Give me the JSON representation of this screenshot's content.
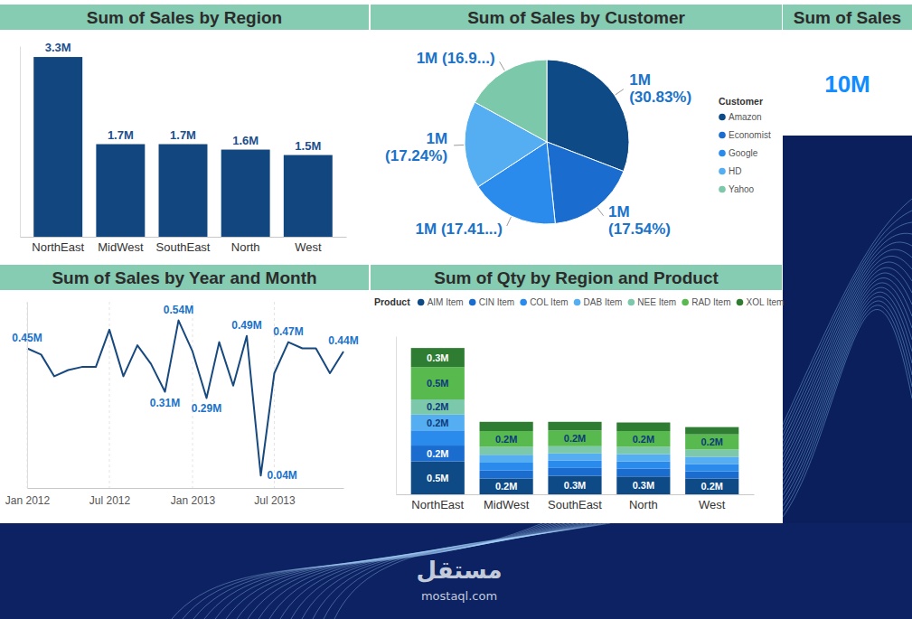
{
  "chart_data": [
    {
      "type": "bar",
      "title": "Sum of Sales by Region",
      "categories": [
        "NorthEast",
        "MidWest",
        "SouthEast",
        "North",
        "West"
      ],
      "values": [
        3.3,
        1.7,
        1.7,
        1.6,
        1.5
      ],
      "value_labels": [
        "3.3M",
        "1.7M",
        "1.7M",
        "1.6M",
        "1.5M"
      ],
      "color": "#12467f",
      "ylim": [
        0,
        3.5
      ],
      "data_labels": true,
      "tick_labels": "x"
    },
    {
      "type": "pie",
      "title": "Sum of Sales by Customer",
      "legend_title": "Customer",
      "categories": [
        "Amazon",
        "Economist",
        "Google",
        "HD",
        "Yahoo"
      ],
      "values": [
        30.83,
        17.54,
        17.41,
        17.24,
        16.98
      ],
      "value_labels": [
        "1M (30.83%)",
        "1M (17.54%)",
        "1M (17.41...)",
        "1M (17.24%)",
        "1M (16.9...)"
      ],
      "colors": [
        "#0e4a86",
        "#1a6ccf",
        "#2a8bec",
        "#55adf2",
        "#7cc8ab"
      ],
      "legend": "right",
      "data_labels": true
    },
    {
      "type": "card",
      "title": "Sum of Sales",
      "values": [
        10
      ],
      "value_labels": [
        "10M"
      ]
    },
    {
      "type": "line",
      "title": "Sum of Sales by Year and Month",
      "x": [
        "2012-01",
        "2012-02",
        "2012-03",
        "2012-04",
        "2012-05",
        "2012-06",
        "2012-07",
        "2012-08",
        "2012-09",
        "2012-10",
        "2012-11",
        "2012-12",
        "2013-01",
        "2013-02",
        "2013-03",
        "2013-04",
        "2013-05",
        "2013-06",
        "2013-07",
        "2013-08",
        "2013-09",
        "2013-10",
        "2013-11",
        "2013-12"
      ],
      "values": [
        0.45,
        0.43,
        0.36,
        0.38,
        0.39,
        0.39,
        0.51,
        0.36,
        0.46,
        0.4,
        0.31,
        0.54,
        0.44,
        0.29,
        0.47,
        0.33,
        0.49,
        0.04,
        0.37,
        0.47,
        0.45,
        0.45,
        0.37,
        0.44
      ],
      "value_labels": [
        "0.45M",
        null,
        null,
        null,
        null,
        null,
        null,
        null,
        null,
        null,
        "0.31M",
        "0.54M",
        null,
        "0.29M",
        null,
        null,
        "0.49M",
        "0.04M",
        null,
        "0.47M",
        null,
        null,
        null,
        "0.44M"
      ],
      "color": "#17497f",
      "xlim": [
        "2012-01",
        "2013-12"
      ],
      "xticks": [
        {
          "value": "2012-01",
          "label": "Jan 2012"
        },
        {
          "value": "2012-07",
          "label": "Jul 2012"
        },
        {
          "value": "2013-01",
          "label": "Jan 2013"
        },
        {
          "value": "2013-07",
          "label": "Jul 2013"
        }
      ],
      "ylim": [
        0,
        0.6
      ],
      "grid": true,
      "data_labels": true,
      "tick_labels": "x"
    },
    {
      "type": "bar",
      "stacked": true,
      "title": "Sum of Qty by Region and Product",
      "legend_title": "Product",
      "categories": [
        "NorthEast",
        "MidWest",
        "SouthEast",
        "North",
        "West"
      ],
      "series": [
        {
          "name": "AIM Item",
          "color": "#0e4a86",
          "values": [
            0.5,
            0.24,
            0.28,
            0.27,
            0.24
          ],
          "value_labels": [
            "0.5M",
            "0.2M",
            "0.3M",
            "0.3M",
            "0.2M"
          ]
        },
        {
          "name": "CIN Item",
          "color": "#1a6ccf",
          "values": [
            0.24,
            0.12,
            0.12,
            0.12,
            0.11
          ],
          "value_labels": [
            "0.2M",
            null,
            null,
            null,
            null
          ]
        },
        {
          "name": "COL Item",
          "color": "#2a8bec",
          "values": [
            0.23,
            0.12,
            0.11,
            0.11,
            0.11
          ],
          "value_labels": [
            null,
            null,
            null,
            null,
            null
          ]
        },
        {
          "name": "DAB Item",
          "color": "#55adf2",
          "values": [
            0.24,
            0.12,
            0.11,
            0.11,
            0.11
          ],
          "value_labels": [
            "0.2M",
            null,
            null,
            null,
            null
          ]
        },
        {
          "name": "NEE Item",
          "color": "#7cc8ab",
          "values": [
            0.23,
            0.12,
            0.11,
            0.11,
            0.11
          ],
          "value_labels": [
            "0.2M",
            null,
            null,
            null,
            null
          ]
        },
        {
          "name": "RAD Item",
          "color": "#58b94f",
          "values": [
            0.49,
            0.24,
            0.24,
            0.24,
            0.23
          ],
          "value_labels": [
            "0.5M",
            "0.2M",
            "0.2M",
            "0.2M",
            "0.2M"
          ]
        },
        {
          "name": "XOL Item",
          "color": "#2e7d32",
          "values": [
            0.29,
            0.14,
            0.13,
            0.13,
            0.11
          ],
          "value_labels": [
            "0.3M",
            null,
            null,
            null,
            null
          ]
        }
      ],
      "ylim": [
        0,
        2.4
      ],
      "legend": "top",
      "data_labels": true,
      "tick_labels": "x"
    }
  ],
  "watermark": [
    "مستقل",
    "mostaql.com"
  ]
}
